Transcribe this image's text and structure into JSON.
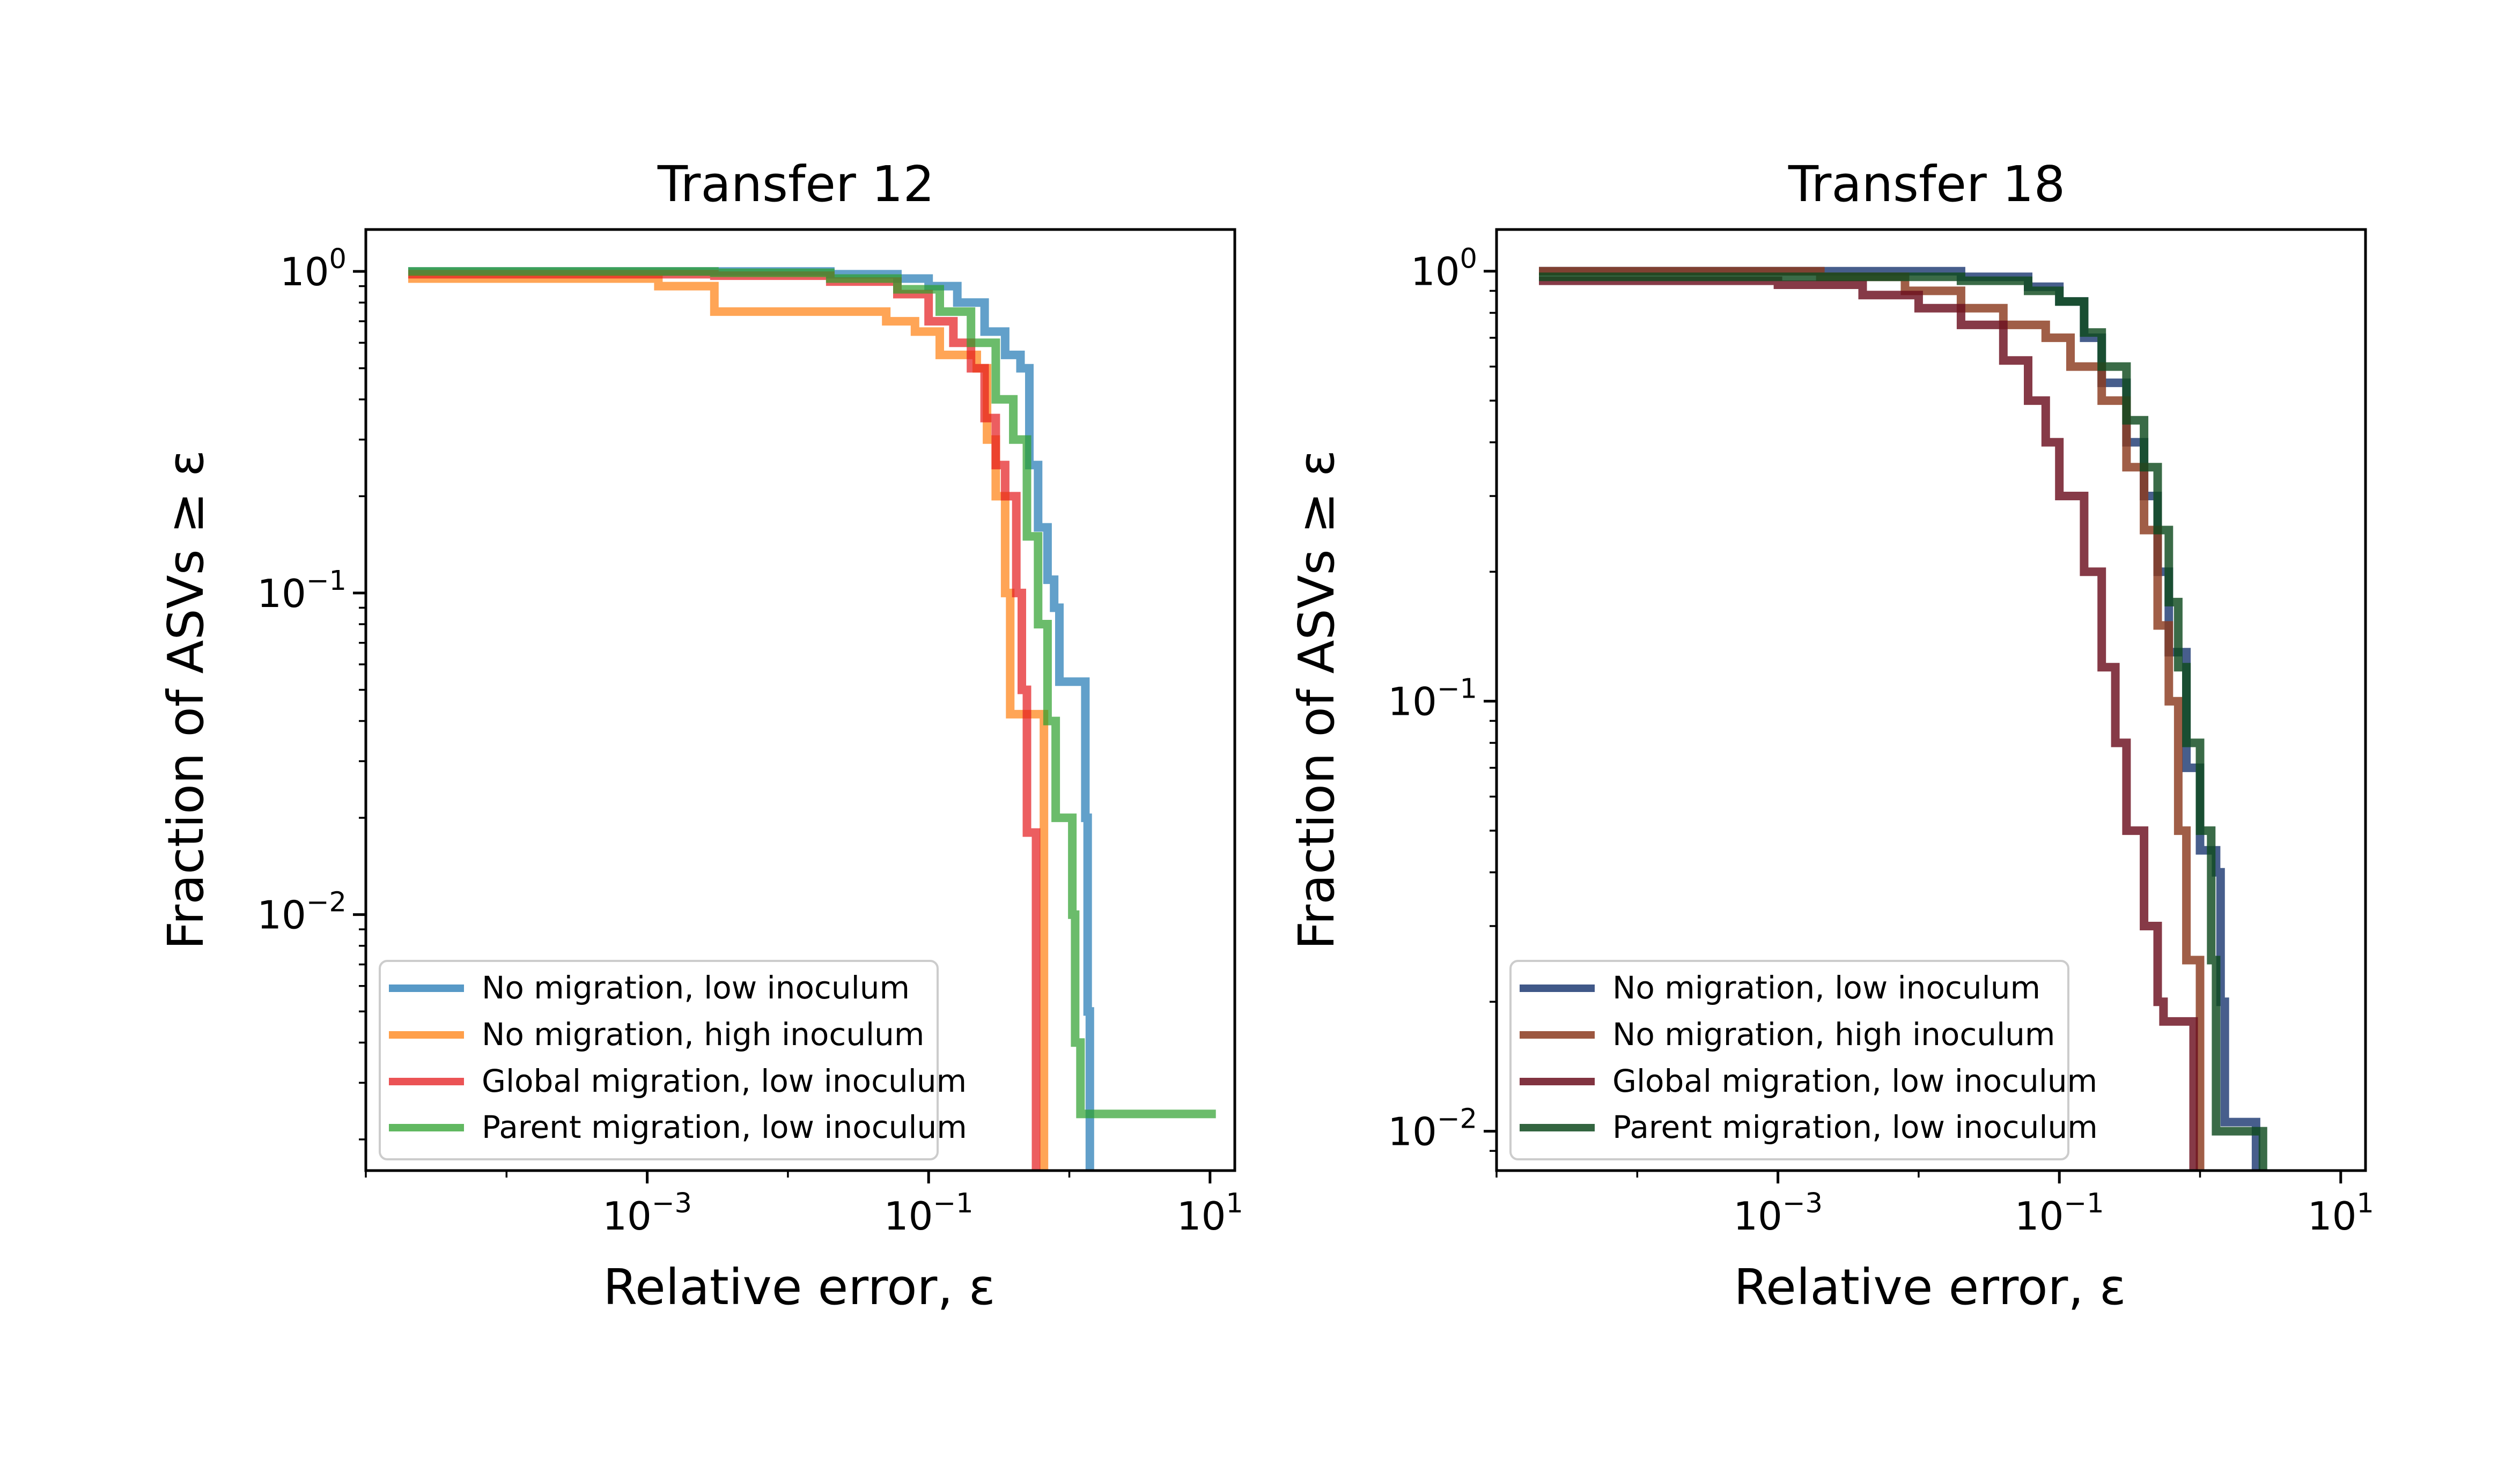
{
  "chart_data": [
    {
      "type": "line",
      "title": "Transfer 12",
      "xlabel": "Relative error, ε",
      "ylabel": "Fraction of ASVs ≥ ε",
      "xscale": "log",
      "yscale": "log",
      "xlim": [
        1e-05,
        15
      ],
      "ylim": [
        0.0016,
        1.35
      ],
      "xticks": [
        {
          "value": 0.001,
          "label": "10",
          "exp": "−3"
        },
        {
          "value": 0.1,
          "label": "10",
          "exp": "−1"
        },
        {
          "value": 10,
          "label": "10",
          "exp": "1"
        }
      ],
      "yticks": [
        {
          "value": 1,
          "label": "10",
          "exp": "0"
        },
        {
          "value": 0.1,
          "label": "10",
          "exp": "−1"
        },
        {
          "value": 0.01,
          "label": "10",
          "exp": "−2"
        }
      ],
      "grid": false,
      "legend_position": "lower-left",
      "series": [
        {
          "name": "No migration, low inoculum",
          "color": "#1f77b4",
          "points": [
            [
              2e-05,
              1.0
            ],
            [
              0.006,
              1.0
            ],
            [
              0.02,
              0.98
            ],
            [
              0.06,
              0.95
            ],
            [
              0.1,
              0.9
            ],
            [
              0.16,
              0.8
            ],
            [
              0.25,
              0.65
            ],
            [
              0.35,
              0.55
            ],
            [
              0.45,
              0.5
            ],
            [
              0.52,
              0.25
            ],
            [
              0.6,
              0.16
            ],
            [
              0.7,
              0.11
            ],
            [
              0.78,
              0.09
            ],
            [
              0.85,
              0.053
            ],
            [
              1.25,
              0.053
            ],
            [
              1.3,
              0.02
            ],
            [
              1.35,
              0.005
            ],
            [
              1.4,
              0.0016
            ]
          ]
        },
        {
          "name": "No migration, high inoculum",
          "color": "#ff7f0e",
          "points": [
            [
              2e-05,
              0.95
            ],
            [
              0.0008,
              0.95
            ],
            [
              0.0012,
              0.9
            ],
            [
              0.003,
              0.85
            ],
            [
              0.003,
              0.75
            ],
            [
              0.03,
              0.75
            ],
            [
              0.05,
              0.7
            ],
            [
              0.08,
              0.65
            ],
            [
              0.12,
              0.55
            ],
            [
              0.2,
              0.55
            ],
            [
              0.22,
              0.5
            ],
            [
              0.26,
              0.3
            ],
            [
              0.3,
              0.2
            ],
            [
              0.35,
              0.1
            ],
            [
              0.38,
              0.042
            ],
            [
              0.65,
              0.042
            ],
            [
              0.66,
              0.0016
            ]
          ]
        },
        {
          "name": "Global migration, low inoculum",
          "color": "#e41a1c",
          "points": [
            [
              2e-05,
              0.98
            ],
            [
              0.003,
              0.97
            ],
            [
              0.02,
              0.93
            ],
            [
              0.06,
              0.85
            ],
            [
              0.1,
              0.7
            ],
            [
              0.15,
              0.6
            ],
            [
              0.2,
              0.5
            ],
            [
              0.25,
              0.35
            ],
            [
              0.3,
              0.25
            ],
            [
              0.35,
              0.2
            ],
            [
              0.42,
              0.1
            ],
            [
              0.46,
              0.05
            ],
            [
              0.5,
              0.018
            ],
            [
              0.58,
              0.018
            ],
            [
              0.58,
              0.0016
            ]
          ]
        },
        {
          "name": "Parent migration, low inoculum",
          "color": "#2ca02c",
          "points": [
            [
              2e-05,
              1.0
            ],
            [
              0.003,
              0.99
            ],
            [
              0.02,
              0.95
            ],
            [
              0.06,
              0.88
            ],
            [
              0.12,
              0.75
            ],
            [
              0.2,
              0.6
            ],
            [
              0.3,
              0.4
            ],
            [
              0.4,
              0.3
            ],
            [
              0.5,
              0.15
            ],
            [
              0.6,
              0.08
            ],
            [
              0.7,
              0.04
            ],
            [
              0.8,
              0.02
            ],
            [
              1.05,
              0.01
            ],
            [
              1.1,
              0.004
            ],
            [
              1.2,
              0.0024
            ],
            [
              11,
              0.0024
            ]
          ]
        }
      ]
    },
    {
      "type": "line",
      "title": "Transfer 18",
      "xlabel": "Relative error, ε",
      "ylabel": "Fraction of ASVs ≥ ε",
      "xscale": "log",
      "yscale": "log",
      "xlim": [
        1e-05,
        15
      ],
      "ylim": [
        0.0081,
        1.25
      ],
      "xticks": [
        {
          "value": 0.001,
          "label": "10",
          "exp": "−3"
        },
        {
          "value": 0.1,
          "label": "10",
          "exp": "−1"
        },
        {
          "value": 10,
          "label": "10",
          "exp": "1"
        }
      ],
      "yticks": [
        {
          "value": 1,
          "label": "10",
          "exp": "0"
        },
        {
          "value": 0.1,
          "label": "10",
          "exp": "−1"
        },
        {
          "value": 0.01,
          "label": "10",
          "exp": "−2"
        }
      ],
      "grid": false,
      "legend_position": "lower-left",
      "series": [
        {
          "name": "No migration, low inoculum",
          "color": "#1f3b73",
          "points": [
            [
              2e-05,
              1.0
            ],
            [
              0.005,
              1.0
            ],
            [
              0.02,
              0.97
            ],
            [
              0.06,
              0.92
            ],
            [
              0.1,
              0.85
            ],
            [
              0.15,
              0.7
            ],
            [
              0.2,
              0.55
            ],
            [
              0.3,
              0.4
            ],
            [
              0.4,
              0.3
            ],
            [
              0.5,
              0.2
            ],
            [
              0.6,
              0.13
            ],
            [
              0.8,
              0.07
            ],
            [
              1.0,
              0.045
            ],
            [
              1.3,
              0.04
            ],
            [
              1.4,
              0.02
            ],
            [
              1.5,
              0.0105
            ],
            [
              2.5,
              0.0105
            ],
            [
              2.5,
              0.0081
            ]
          ]
        },
        {
          "name": "No migration, high inoculum",
          "color": "#8b3a1e",
          "points": [
            [
              2e-05,
              1.0
            ],
            [
              0.002,
              0.97
            ],
            [
              0.008,
              0.9
            ],
            [
              0.02,
              0.82
            ],
            [
              0.04,
              0.75
            ],
            [
              0.08,
              0.7
            ],
            [
              0.12,
              0.6
            ],
            [
              0.2,
              0.5
            ],
            [
              0.3,
              0.35
            ],
            [
              0.4,
              0.25
            ],
            [
              0.5,
              0.15
            ],
            [
              0.6,
              0.1
            ],
            [
              0.7,
              0.05
            ],
            [
              0.8,
              0.025
            ],
            [
              1.0,
              0.02
            ],
            [
              1.0,
              0.0081
            ]
          ]
        },
        {
          "name": "Global migration, low inoculum",
          "color": "#6b0f1f",
          "points": [
            [
              2e-05,
              0.95
            ],
            [
              0.001,
              0.93
            ],
            [
              0.004,
              0.88
            ],
            [
              0.01,
              0.82
            ],
            [
              0.02,
              0.75
            ],
            [
              0.04,
              0.62
            ],
            [
              0.06,
              0.5
            ],
            [
              0.08,
              0.4
            ],
            [
              0.1,
              0.3
            ],
            [
              0.15,
              0.2
            ],
            [
              0.2,
              0.12
            ],
            [
              0.25,
              0.08
            ],
            [
              0.3,
              0.05
            ],
            [
              0.4,
              0.03
            ],
            [
              0.5,
              0.02
            ],
            [
              0.55,
              0.018
            ],
            [
              0.9,
              0.018
            ],
            [
              0.9,
              0.0081
            ]
          ]
        },
        {
          "name": "Parent migration, low inoculum",
          "color": "#0f4a1f",
          "points": [
            [
              2e-05,
              0.97
            ],
            [
              0.005,
              0.97
            ],
            [
              0.02,
              0.95
            ],
            [
              0.06,
              0.9
            ],
            [
              0.1,
              0.85
            ],
            [
              0.15,
              0.72
            ],
            [
              0.2,
              0.6
            ],
            [
              0.3,
              0.45
            ],
            [
              0.4,
              0.35
            ],
            [
              0.5,
              0.25
            ],
            [
              0.6,
              0.17
            ],
            [
              0.7,
              0.12
            ],
            [
              0.8,
              0.08
            ],
            [
              1.0,
              0.05
            ],
            [
              1.2,
              0.025
            ],
            [
              1.3,
              0.01
            ],
            [
              2.8,
              0.01
            ],
            [
              2.8,
              0.0081
            ]
          ]
        }
      ]
    }
  ]
}
